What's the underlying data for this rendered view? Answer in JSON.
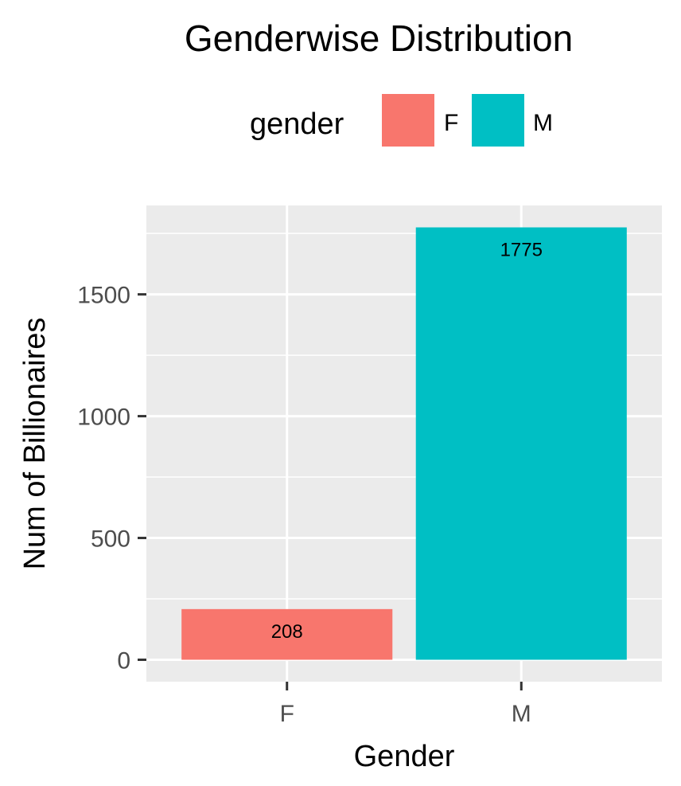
{
  "chart_data": {
    "type": "bar",
    "title": "Genderwise Distribution",
    "xlabel": "Gender",
    "ylabel": "Num of Billionaires",
    "categories": [
      "F",
      "M"
    ],
    "values": [
      208,
      1775
    ],
    "data_labels": [
      "208",
      "1775"
    ],
    "ylim": [
      -90,
      1865
    ],
    "yticks": [
      0,
      500,
      1000,
      1500
    ],
    "ytick_labels": [
      "0",
      "500",
      "1000",
      "1500"
    ],
    "xtick_labels": [
      "F",
      "M"
    ],
    "grid": true,
    "legend": {
      "title": "gender",
      "placement": "top",
      "entries": [
        {
          "label": "F",
          "color": "#F8766D"
        },
        {
          "label": "M",
          "color": "#00BFC4"
        }
      ]
    },
    "colors": {
      "F": "#F8766D",
      "M": "#00BFC4"
    },
    "panel_background": "#EBEBEB"
  }
}
